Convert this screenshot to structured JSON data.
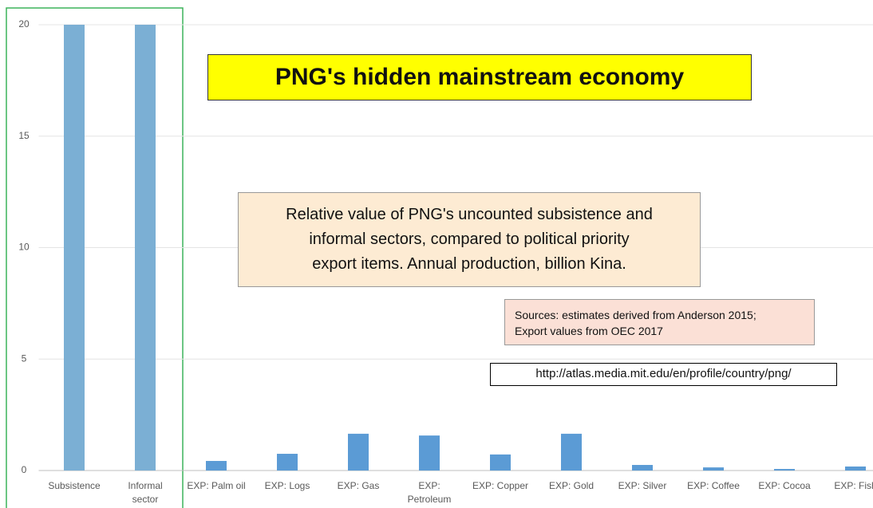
{
  "chart_data": {
    "type": "bar",
    "title": "PNG's hidden mainstream economy",
    "subtitle": "Relative value of PNG's uncounted subsistence and\ninformal sectors, compared to political priority\nexport items. Annual production, billion Kina.",
    "annotations": [
      "Sources: estimates derived from Anderson 2015;\nExport values from OEC 2017",
      "http://atlas.media.mit.edu/en/profile/country/png/"
    ],
    "categories": [
      "Subsistence",
      "Informal\nsector",
      "EXP: Palm oil",
      "EXP: Logs",
      "EXP: Gas",
      "EXP:\nPetroleum",
      "EXP: Copper",
      "EXP: Gold",
      "EXP: Silver",
      "EXP: Coffee",
      "EXP: Cocoa",
      "EXP: Fish"
    ],
    "values": [
      20,
      20,
      0.43,
      0.75,
      1.65,
      1.57,
      0.72,
      1.65,
      0.25,
      0.14,
      0.07,
      0.18
    ],
    "colors": [
      "#7bafd4",
      "#7bafd4",
      "#5b9bd5",
      "#5b9bd5",
      "#5b9bd5",
      "#5b9bd5",
      "#5b9bd5",
      "#5b9bd5",
      "#5b9bd5",
      "#5b9bd5",
      "#5b9bd5",
      "#5b9bd5"
    ],
    "ylim": [
      0,
      20
    ],
    "yticks": [
      0,
      5,
      10,
      15,
      20
    ],
    "grid": true
  }
}
